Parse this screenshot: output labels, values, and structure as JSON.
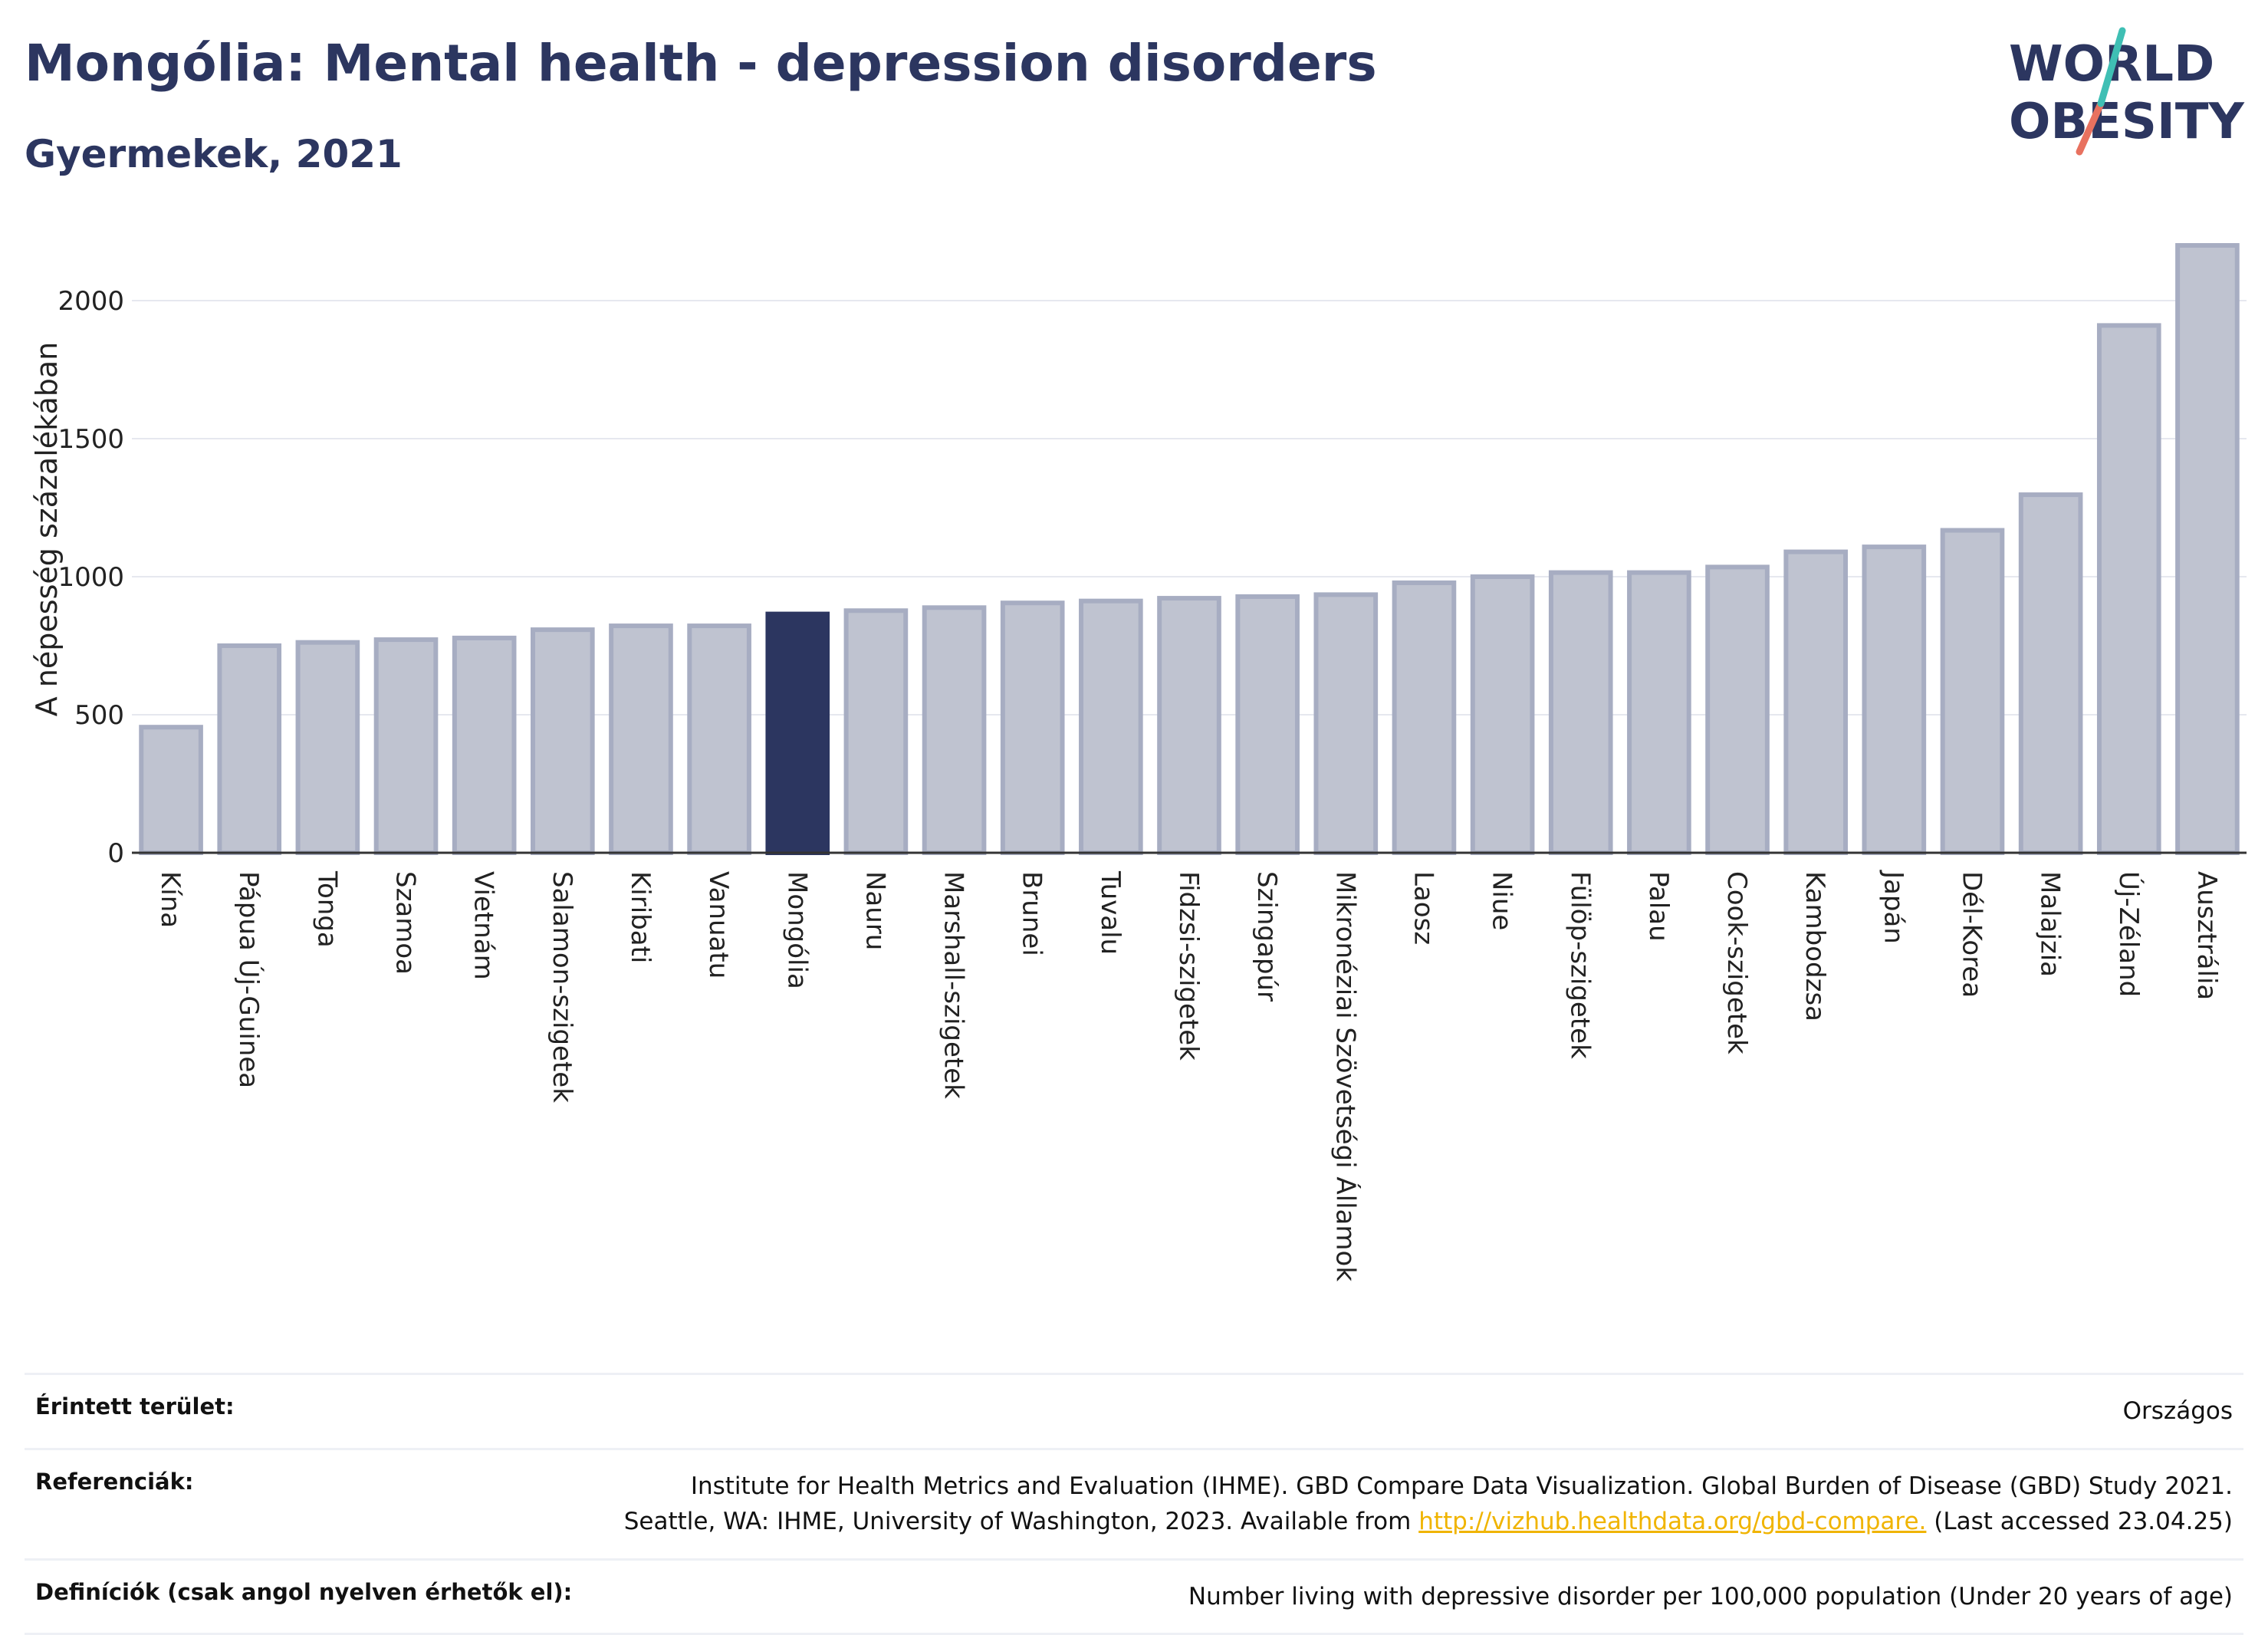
{
  "title": "Mongólia: Mental health - depression disorders",
  "subtitle": "Gyermekek, 2021",
  "logo": {
    "line1": "WORLD",
    "line2": "OBESITY"
  },
  "colors": {
    "bar": "#bfc3d0",
    "bar_stroke": "#a7adc2",
    "highlight": "#2c3660",
    "title": "#2c3660",
    "link": "#f0b400"
  },
  "chart_data": {
    "type": "bar",
    "ylabel": "A népesség százalékában",
    "ylim": [
      0,
      2200
    ],
    "yticks": [
      0,
      500,
      1000,
      1500,
      2000
    ],
    "grid": true,
    "highlight": "Mongólia",
    "categories": [
      "Kína",
      "Pápua Új-Guinea",
      "Tonga",
      "Szamoa",
      "Vietnám",
      "Salamon-szigetek",
      "Kiribati",
      "Vanuatu",
      "Mongólia",
      "Nauru",
      "Marshall-szigetek",
      "Brunei",
      "Tuvalu",
      "Fidzsi-szigetek",
      "Szingapúr",
      "Mikronéziai Szövetségi Államok",
      "Laosz",
      "Niue",
      "Fülöp-szigetek",
      "Palau",
      "Cook-szigetek",
      "Kambodzsa",
      "Japán",
      "Dél-Korea",
      "Malajzia",
      "Új-Zéland",
      "Ausztrália"
    ],
    "values": [
      455,
      750,
      762,
      772,
      778,
      808,
      822,
      822,
      865,
      877,
      888,
      905,
      912,
      922,
      928,
      935,
      978,
      1000,
      1015,
      1015,
      1035,
      1090,
      1108,
      1168,
      1297,
      1910,
      2200
    ]
  },
  "meta": {
    "area_label": "Érintett terület:",
    "area_value": "Országos",
    "refs_label": "Referenciák:",
    "refs_line1": "Institute for Health Metrics and Evaluation (IHME). GBD Compare Data Visualization. Global Burden of Disease (GBD) Study 2021.",
    "refs_line2_pre": "Seattle, WA: IHME, University of Washington, 2023. Available from ",
    "refs_link": "http://vizhub.healthdata.org/gbd-compare.",
    "refs_line2_post": " (Last accessed 23.04.25)",
    "defs_label": "Definíciók (csak angol nyelven érhetők el):",
    "defs_value": "Number living with depressive disorder per 100,000 population (Under 20 years of age)"
  }
}
